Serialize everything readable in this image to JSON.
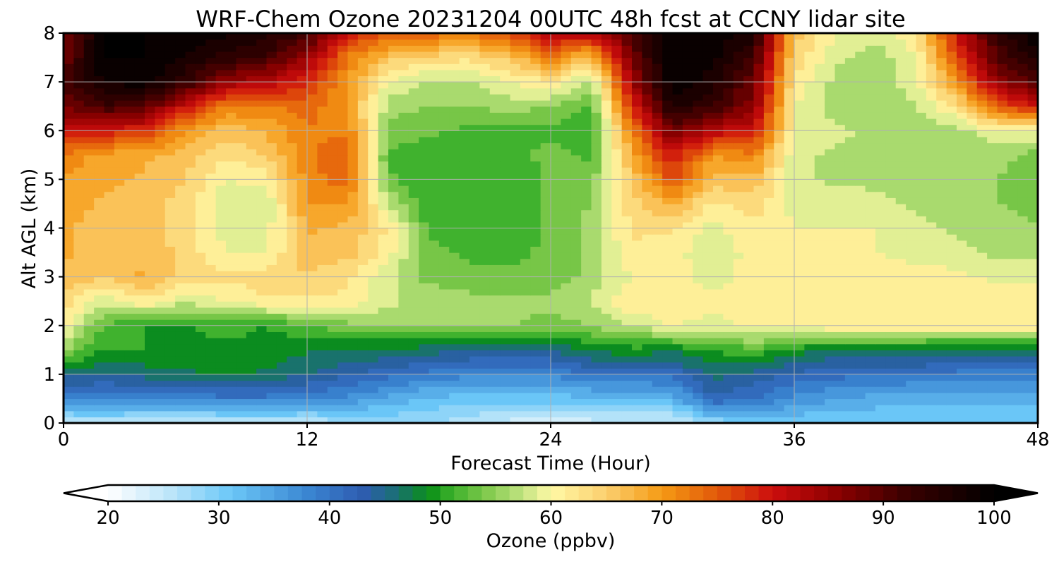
{
  "chart_data": {
    "type": "heatmap",
    "title": "WRF-Chem Ozone  20231204 00UTC 48h fcst at CCNY lidar site",
    "xlabel": "Forecast Time (Hour)",
    "ylabel": "Alt AGL (km)",
    "xlim": [
      0,
      48
    ],
    "ylim": [
      0,
      8
    ],
    "xticks": [
      0,
      12,
      24,
      36,
      48
    ],
    "yticks": [
      0,
      1,
      2,
      3,
      4,
      5,
      6,
      7,
      8
    ],
    "grid": true,
    "colorbar": {
      "label": "Ozone  (ppbv)",
      "range": [
        20,
        100
      ],
      "ticks": [
        20,
        30,
        40,
        50,
        60,
        70,
        80,
        90,
        100
      ],
      "extend": "both",
      "stops": [
        {
          "v": 20,
          "c": "#ffffff"
        },
        {
          "v": 26,
          "c": "#b7e3f9"
        },
        {
          "v": 31,
          "c": "#6cc8f8"
        },
        {
          "v": 38,
          "c": "#3a86d2"
        },
        {
          "v": 43,
          "c": "#2e5cb0"
        },
        {
          "v": 46,
          "c": "#1a6f74"
        },
        {
          "v": 49,
          "c": "#0a8f17"
        },
        {
          "v": 51,
          "c": "#3bb02b"
        },
        {
          "v": 54,
          "c": "#7cc84a"
        },
        {
          "v": 57,
          "c": "#b8e07a"
        },
        {
          "v": 60,
          "c": "#fff9a6"
        },
        {
          "v": 65,
          "c": "#fbcf6e"
        },
        {
          "v": 70,
          "c": "#f59a14"
        },
        {
          "v": 75,
          "c": "#e2590a"
        },
        {
          "v": 80,
          "c": "#cc0d0d"
        },
        {
          "v": 86,
          "c": "#8a0000"
        },
        {
          "v": 92,
          "c": "#3a0000"
        },
        {
          "v": 100,
          "c": "#000000"
        }
      ]
    },
    "x_hours": [
      0,
      2,
      4,
      6,
      8,
      10,
      12,
      14,
      16,
      18,
      20,
      22,
      24,
      26,
      28,
      30,
      32,
      34,
      36,
      38,
      40,
      42,
      44,
      46,
      48
    ],
    "z_km": [
      0,
      0.5,
      1.0,
      1.5,
      2.0,
      2.5,
      3.0,
      3.5,
      4.0,
      4.5,
      5.0,
      5.5,
      6.0,
      6.5,
      7.0,
      7.5,
      8.0
    ],
    "values_ppbv": [
      [
        25,
        26,
        24,
        24,
        25,
        25,
        25,
        27,
        28,
        28,
        26,
        24,
        24,
        24,
        24,
        24,
        28,
        30,
        30,
        30,
        30,
        30,
        30,
        30,
        30
      ],
      [
        38,
        38,
        38,
        38,
        39,
        39,
        38,
        37,
        34,
        32,
        31,
        31,
        31,
        32,
        32,
        33,
        42,
        40,
        37,
        35,
        34,
        33,
        33,
        33,
        33
      ],
      [
        46,
        45,
        46,
        47,
        48,
        47,
        45,
        43,
        41,
        39,
        38,
        38,
        38,
        40,
        40,
        41,
        46,
        44,
        42,
        41,
        40,
        40,
        39,
        39,
        39
      ],
      [
        55,
        50,
        50,
        49,
        49,
        49,
        48,
        47,
        47,
        46,
        45,
        45,
        45,
        48,
        49,
        48,
        50,
        52,
        49,
        47,
        47,
        47,
        46,
        46,
        46
      ],
      [
        61,
        52,
        50,
        50,
        51,
        50,
        52,
        54,
        55,
        56,
        55,
        55,
        54,
        55,
        58,
        60,
        59,
        61,
        61,
        62,
        62,
        62,
        62,
        62,
        62
      ],
      [
        64,
        58,
        62,
        58,
        60,
        62,
        62,
        62,
        58,
        57,
        56,
        56,
        56,
        58,
        62,
        62,
        61,
        61,
        62,
        62,
        62,
        62,
        62,
        62,
        62
      ],
      [
        67,
        65,
        68,
        64,
        63,
        64,
        65,
        63,
        58,
        54,
        53,
        53,
        53,
        56,
        60,
        61,
        59,
        61,
        61,
        62,
        62,
        61,
        61,
        59,
        59
      ],
      [
        68,
        66,
        67,
        64,
        60,
        60,
        66,
        66,
        61,
        53,
        52,
        52,
        53,
        56,
        62,
        61,
        58,
        61,
        60,
        61,
        60,
        59,
        58,
        57,
        57
      ],
      [
        68,
        66,
        66,
        64,
        59,
        59,
        68,
        67,
        62,
        52,
        51,
        51,
        53,
        56,
        63,
        63,
        59,
        62,
        60,
        60,
        60,
        58,
        57,
        56,
        55
      ],
      [
        69,
        67,
        66,
        64,
        58,
        58,
        70,
        70,
        58,
        50,
        51,
        51,
        53,
        55,
        64,
        68,
        62,
        64,
        59,
        59,
        58,
        57,
        56,
        55,
        54
      ],
      [
        70,
        68,
        67,
        65,
        60,
        61,
        71,
        74,
        53,
        50,
        50,
        51,
        53,
        54,
        65,
        76,
        66,
        67,
        58,
        57,
        57,
        56,
        55,
        55,
        53
      ],
      [
        72,
        69,
        68,
        66,
        63,
        65,
        72,
        75,
        52,
        51,
        51,
        52,
        53,
        52,
        68,
        80,
        70,
        72,
        58,
        57,
        56,
        55,
        55,
        56,
        54
      ],
      [
        80,
        79,
        78,
        70,
        66,
        68,
        72,
        72,
        54,
        53,
        52,
        52,
        52,
        51,
        72,
        88,
        82,
        80,
        60,
        58,
        57,
        56,
        56,
        60,
        60
      ],
      [
        88,
        92,
        90,
        80,
        72,
        72,
        74,
        70,
        56,
        55,
        55,
        56,
        55,
        52,
        78,
        96,
        92,
        86,
        60,
        56,
        56,
        57,
        63,
        75,
        80
      ],
      [
        90,
        98,
        99,
        93,
        85,
        82,
        78,
        70,
        60,
        57,
        57,
        60,
        62,
        56,
        84,
        100,
        96,
        88,
        62,
        57,
        56,
        59,
        70,
        85,
        90
      ],
      [
        88,
        100,
        100,
        97,
        94,
        92,
        84,
        72,
        66,
        64,
        63,
        66,
        72,
        66,
        88,
        100,
        98,
        92,
        64,
        58,
        56,
        60,
        76,
        90,
        96
      ],
      [
        86,
        100,
        100,
        100,
        98,
        96,
        92,
        80,
        75,
        74,
        73,
        76,
        82,
        82,
        90,
        100,
        100,
        96,
        66,
        60,
        58,
        62,
        80,
        94,
        100
      ]
    ]
  }
}
